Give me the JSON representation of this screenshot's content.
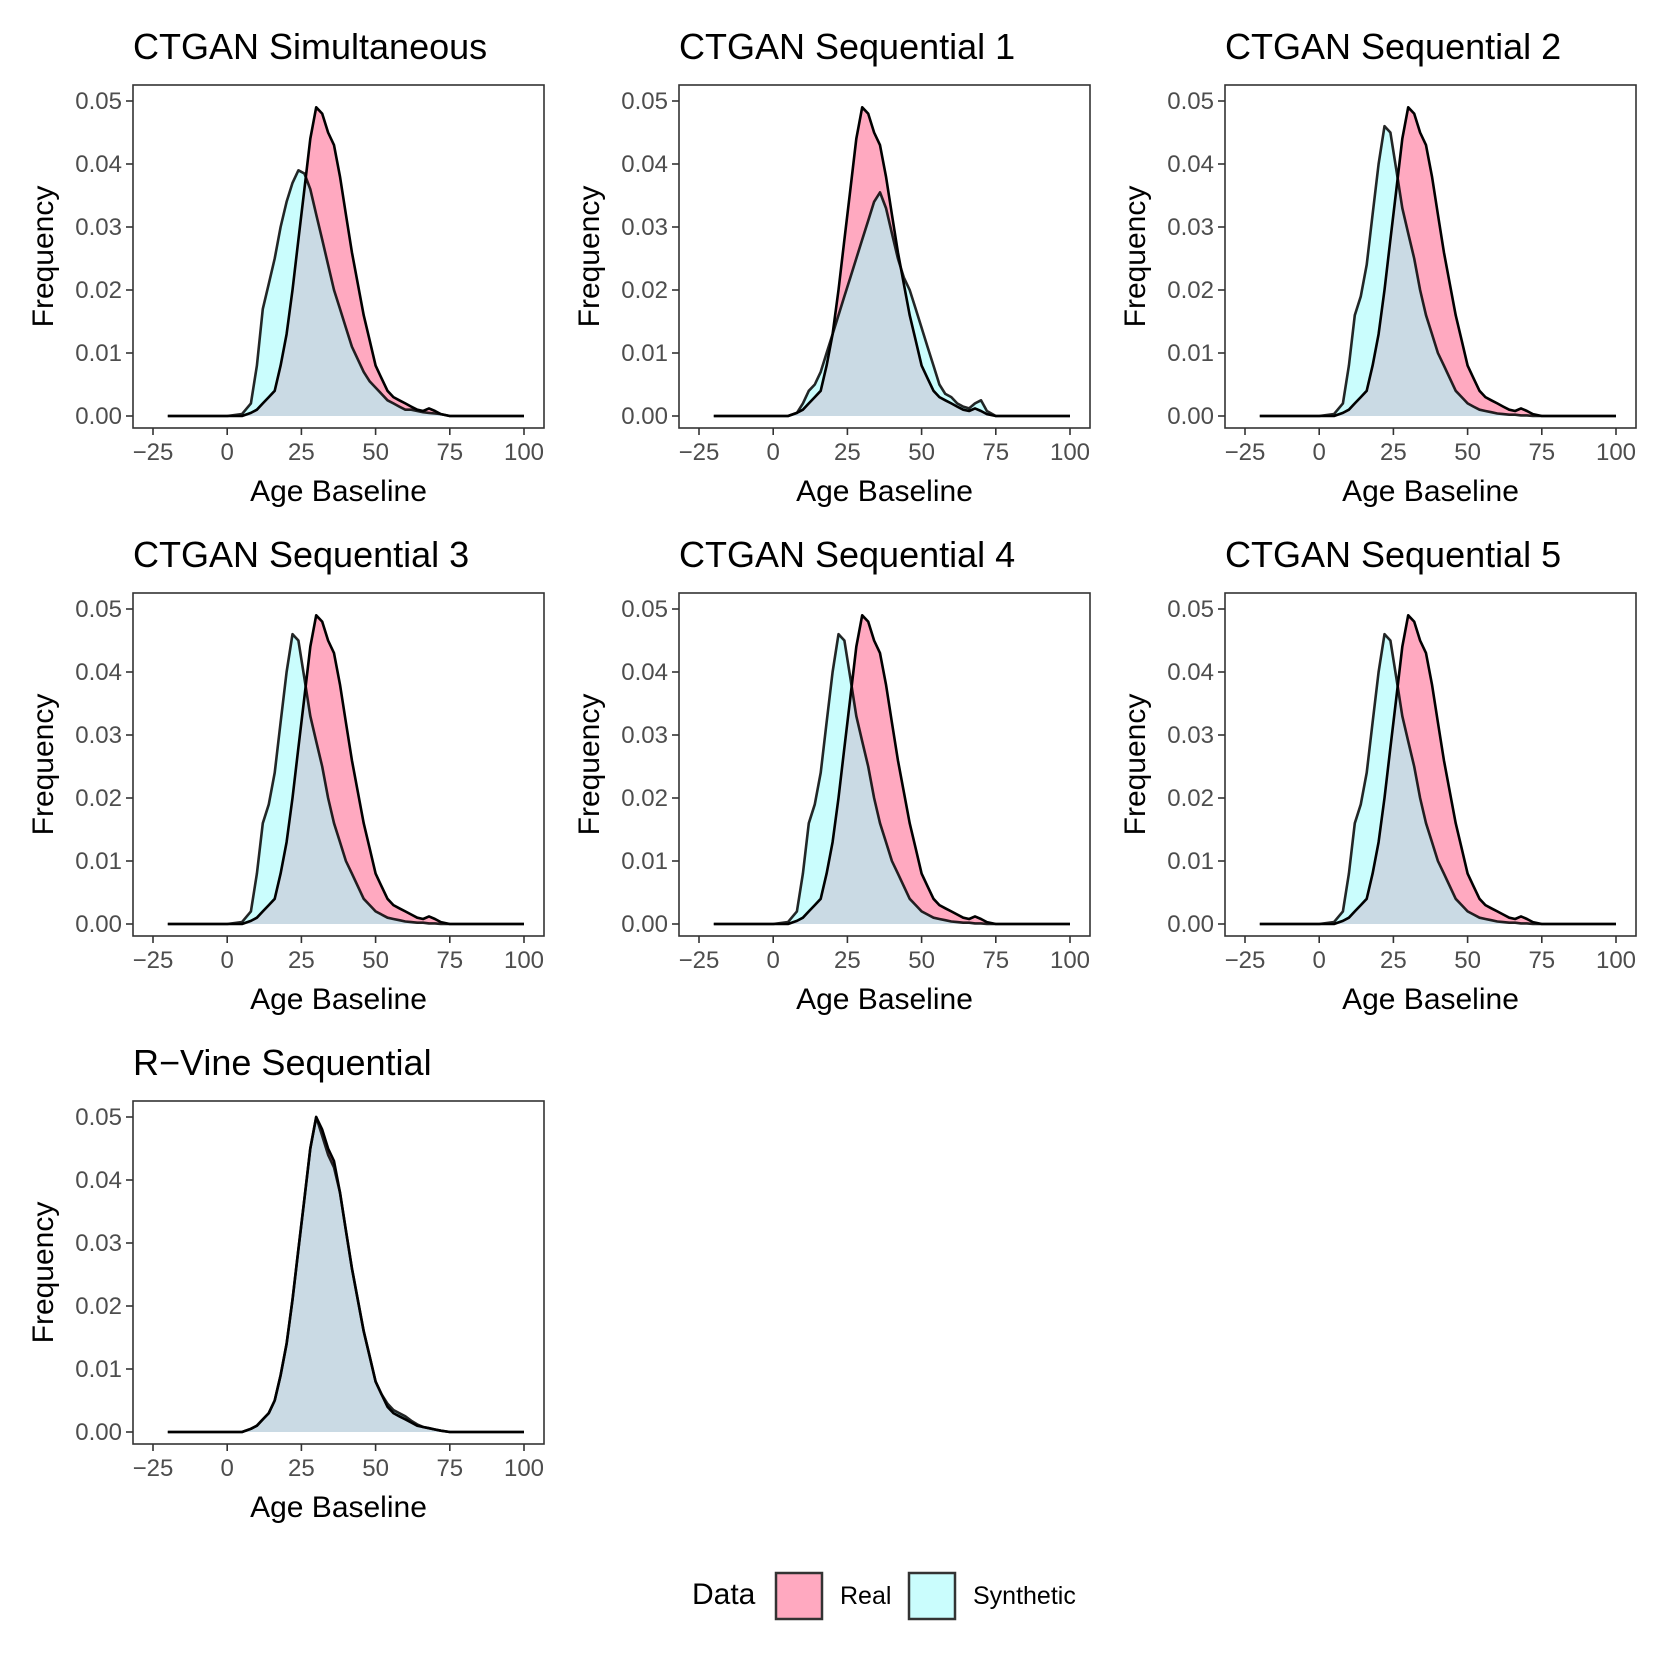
{
  "chart_data": {
    "type": "area",
    "description_kind": "faceted density plots",
    "xlabel": "Age Baseline",
    "ylabel": "Frequency",
    "xlim": [
      -25,
      100
    ],
    "ylim": [
      0,
      0.05
    ],
    "x_ticks": [
      -25,
      0,
      25,
      50,
      75,
      100
    ],
    "x_tick_labels": [
      "−25",
      "0",
      "25",
      "50",
      "75",
      "100"
    ],
    "y_ticks": [
      0,
      0.01,
      0.02,
      0.03,
      0.04,
      0.05
    ],
    "y_tick_labels": [
      "0.00",
      "0.01",
      "0.02",
      "0.03",
      "0.04",
      "0.05"
    ],
    "x_grid": [
      -20,
      -10,
      0,
      5,
      8,
      10,
      12,
      14,
      16,
      18,
      20,
      22,
      24,
      26,
      28,
      30,
      32,
      34,
      36,
      38,
      40,
      42,
      44,
      46,
      48,
      50,
      52,
      54,
      56,
      58,
      60,
      62,
      64,
      66,
      68,
      70,
      72,
      75,
      80,
      90,
      100
    ],
    "legend": {
      "title": "Data",
      "position": "bottom",
      "entries": [
        {
          "label": "Real",
          "color": "#ff6f96"
        },
        {
          "label": "Synthetic",
          "color": "#a6fbfb"
        }
      ]
    },
    "panels": [
      {
        "title": "CTGAN Simultaneous",
        "series": [
          {
            "name": "Real",
            "values": [
              0,
              0,
              0,
              0,
              0.0005,
              0.001,
              0.002,
              0.003,
              0.004,
              0.008,
              0.013,
              0.02,
              0.028,
              0.036,
              0.044,
              0.049,
              0.048,
              0.045,
              0.043,
              0.038,
              0.032,
              0.026,
              0.021,
              0.016,
              0.012,
              0.008,
              0.006,
              0.004,
              0.003,
              0.0025,
              0.002,
              0.0015,
              0.001,
              0.0008,
              0.0012,
              0.0008,
              0.0003,
              0,
              0,
              0,
              0
            ]
          },
          {
            "name": "Synthetic",
            "values": [
              0,
              0,
              0,
              0.0003,
              0.002,
              0.008,
              0.017,
              0.021,
              0.025,
              0.03,
              0.034,
              0.037,
              0.039,
              0.0385,
              0.036,
              0.032,
              0.028,
              0.024,
              0.02,
              0.017,
              0.014,
              0.011,
              0.009,
              0.007,
              0.0055,
              0.0045,
              0.0035,
              0.0025,
              0.002,
              0.0015,
              0.001,
              0.001,
              0.0008,
              0.0006,
              0.0005,
              0.0004,
              0.0003,
              0,
              0,
              0,
              0
            ]
          }
        ]
      },
      {
        "title": "CTGAN Sequential 1",
        "series": [
          {
            "name": "Real",
            "values": [
              0,
              0,
              0,
              0,
              0.0005,
              0.001,
              0.002,
              0.003,
              0.004,
              0.008,
              0.013,
              0.02,
              0.028,
              0.036,
              0.044,
              0.049,
              0.048,
              0.045,
              0.043,
              0.038,
              0.032,
              0.026,
              0.021,
              0.016,
              0.012,
              0.008,
              0.006,
              0.004,
              0.003,
              0.0025,
              0.002,
              0.0015,
              0.001,
              0.0008,
              0.0012,
              0.0008,
              0.0003,
              0,
              0,
              0,
              0
            ]
          },
          {
            "name": "Synthetic",
            "values": [
              0,
              0,
              0,
              0,
              0.0005,
              0.002,
              0.004,
              0.005,
              0.007,
              0.01,
              0.013,
              0.016,
              0.019,
              0.022,
              0.025,
              0.028,
              0.031,
              0.034,
              0.0355,
              0.033,
              0.029,
              0.025,
              0.022,
              0.02,
              0.017,
              0.014,
              0.011,
              0.008,
              0.005,
              0.0035,
              0.003,
              0.002,
              0.0015,
              0.0012,
              0.002,
              0.0025,
              0.0008,
              0,
              0,
              0,
              0
            ]
          }
        ]
      },
      {
        "title": "CTGAN Sequential 2",
        "series": [
          {
            "name": "Real",
            "values": [
              0,
              0,
              0,
              0,
              0.0005,
              0.001,
              0.002,
              0.003,
              0.004,
              0.008,
              0.013,
              0.02,
              0.028,
              0.036,
              0.044,
              0.049,
              0.048,
              0.045,
              0.043,
              0.038,
              0.032,
              0.026,
              0.021,
              0.016,
              0.012,
              0.008,
              0.006,
              0.004,
              0.003,
              0.0025,
              0.002,
              0.0015,
              0.001,
              0.0008,
              0.0012,
              0.0008,
              0.0003,
              0,
              0,
              0,
              0
            ]
          },
          {
            "name": "Synthetic",
            "values": [
              0,
              0,
              0,
              0.0003,
              0.002,
              0.008,
              0.016,
              0.019,
              0.024,
              0.032,
              0.04,
              0.046,
              0.045,
              0.039,
              0.033,
              0.029,
              0.025,
              0.02,
              0.016,
              0.013,
              0.01,
              0.008,
              0.006,
              0.004,
              0.003,
              0.002,
              0.0015,
              0.001,
              0.0008,
              0.0006,
              0.0004,
              0.0003,
              0.0002,
              0.0002,
              0.0001,
              0.0001,
              0,
              0,
              0,
              0,
              0
            ]
          }
        ]
      },
      {
        "title": "CTGAN Sequential 3",
        "series": [
          {
            "name": "Real",
            "values": [
              0,
              0,
              0,
              0,
              0.0005,
              0.001,
              0.002,
              0.003,
              0.004,
              0.008,
              0.013,
              0.02,
              0.028,
              0.036,
              0.044,
              0.049,
              0.048,
              0.045,
              0.043,
              0.038,
              0.032,
              0.026,
              0.021,
              0.016,
              0.012,
              0.008,
              0.006,
              0.004,
              0.003,
              0.0025,
              0.002,
              0.0015,
              0.001,
              0.0008,
              0.0012,
              0.0008,
              0.0003,
              0,
              0,
              0,
              0
            ]
          },
          {
            "name": "Synthetic",
            "values": [
              0,
              0,
              0,
              0.0003,
              0.002,
              0.008,
              0.016,
              0.019,
              0.024,
              0.032,
              0.04,
              0.046,
              0.045,
              0.039,
              0.033,
              0.029,
              0.025,
              0.02,
              0.016,
              0.013,
              0.01,
              0.008,
              0.006,
              0.004,
              0.003,
              0.002,
              0.0015,
              0.001,
              0.0008,
              0.0006,
              0.0004,
              0.0003,
              0.0002,
              0.0002,
              0.0001,
              0.0001,
              0,
              0,
              0,
              0,
              0
            ]
          }
        ]
      },
      {
        "title": "CTGAN Sequential 4",
        "series": [
          {
            "name": "Real",
            "values": [
              0,
              0,
              0,
              0,
              0.0005,
              0.001,
              0.002,
              0.003,
              0.004,
              0.008,
              0.013,
              0.02,
              0.028,
              0.036,
              0.044,
              0.049,
              0.048,
              0.045,
              0.043,
              0.038,
              0.032,
              0.026,
              0.021,
              0.016,
              0.012,
              0.008,
              0.006,
              0.004,
              0.003,
              0.0025,
              0.002,
              0.0015,
              0.001,
              0.0008,
              0.0012,
              0.0008,
              0.0003,
              0,
              0,
              0,
              0
            ]
          },
          {
            "name": "Synthetic",
            "values": [
              0,
              0,
              0,
              0.0003,
              0.002,
              0.008,
              0.016,
              0.019,
              0.024,
              0.032,
              0.04,
              0.046,
              0.045,
              0.039,
              0.033,
              0.029,
              0.025,
              0.02,
              0.016,
              0.013,
              0.01,
              0.008,
              0.006,
              0.004,
              0.003,
              0.002,
              0.0015,
              0.001,
              0.0008,
              0.0006,
              0.0004,
              0.0003,
              0.0002,
              0.0002,
              0.0001,
              0.0001,
              0,
              0,
              0,
              0,
              0
            ]
          }
        ]
      },
      {
        "title": "CTGAN Sequential 5",
        "series": [
          {
            "name": "Real",
            "values": [
              0,
              0,
              0,
              0,
              0.0005,
              0.001,
              0.002,
              0.003,
              0.004,
              0.008,
              0.013,
              0.02,
              0.028,
              0.036,
              0.044,
              0.049,
              0.048,
              0.045,
              0.043,
              0.038,
              0.032,
              0.026,
              0.021,
              0.016,
              0.012,
              0.008,
              0.006,
              0.004,
              0.003,
              0.0025,
              0.002,
              0.0015,
              0.001,
              0.0008,
              0.0012,
              0.0008,
              0.0003,
              0,
              0,
              0,
              0
            ]
          },
          {
            "name": "Synthetic",
            "values": [
              0,
              0,
              0,
              0.0003,
              0.002,
              0.008,
              0.016,
              0.019,
              0.024,
              0.032,
              0.04,
              0.046,
              0.045,
              0.039,
              0.033,
              0.029,
              0.025,
              0.02,
              0.016,
              0.013,
              0.01,
              0.008,
              0.006,
              0.004,
              0.003,
              0.002,
              0.0015,
              0.001,
              0.0008,
              0.0006,
              0.0004,
              0.0003,
              0.0002,
              0.0002,
              0.0001,
              0.0001,
              0,
              0,
              0,
              0,
              0
            ]
          }
        ]
      },
      {
        "title": "R−Vine Sequential",
        "series": [
          {
            "name": "Real",
            "values": [
              0,
              0,
              0,
              0,
              0.0005,
              0.001,
              0.002,
              0.003,
              0.005,
              0.009,
              0.014,
              0.021,
              0.029,
              0.037,
              0.045,
              0.05,
              0.048,
              0.045,
              0.043,
              0.038,
              0.032,
              0.026,
              0.021,
              0.016,
              0.012,
              0.008,
              0.006,
              0.004,
              0.003,
              0.0025,
              0.002,
              0.0015,
              0.001,
              0.0008,
              0.0006,
              0.0004,
              0.0002,
              0,
              0,
              0,
              0
            ]
          },
          {
            "name": "Synthetic",
            "values": [
              0,
              0,
              0,
              0,
              0.0005,
              0.001,
              0.002,
              0.003,
              0.005,
              0.009,
              0.014,
              0.021,
              0.029,
              0.037,
              0.045,
              0.05,
              0.047,
              0.044,
              0.042,
              0.038,
              0.032,
              0.026,
              0.021,
              0.016,
              0.012,
              0.008,
              0.006,
              0.0045,
              0.0035,
              0.003,
              0.0025,
              0.0018,
              0.0012,
              0.0008,
              0.0006,
              0.0004,
              0.0002,
              0,
              0,
              0,
              0
            ]
          }
        ]
      }
    ]
  },
  "style": {
    "real_fill": "#ff6f96",
    "synthetic_fill": "#a6fbfb",
    "overlap_fill": "#cfe3ea",
    "outline": "#000000",
    "panel_border": "#333333",
    "tick_text": "#4d4d4d"
  }
}
